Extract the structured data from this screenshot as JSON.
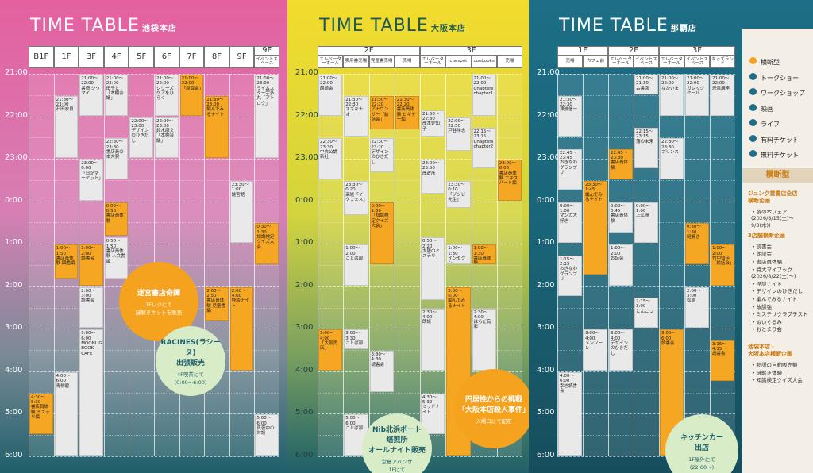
{
  "panels": [
    {
      "title": "TIME TABLE",
      "store": "池袋本店",
      "times": [
        "21:00",
        "22:00",
        "23:00",
        "0:00",
        "1:00",
        "2:00",
        "3:00",
        "4:00",
        "5:00",
        "6:00"
      ],
      "floors": [
        {
          "label": "B1F",
          "columns": [
            {
              "events": [
                {
                  "time": "4:30～5:30",
                  "label": "書店員体験 ミステリ編",
                  "color": "#f5a623"
                }
              ]
            }
          ]
        },
        {
          "label": "1F",
          "columns": [
            {
              "events": [
                {
                  "time": "21:30～23:00",
                  "label": "石田衣良",
                  "color": "#e9e9e9"
                },
                {
                  "time": "1:00～1:50",
                  "label": "書店員体験 図鑑編",
                  "color": "#f5a623"
                },
                {
                  "time": "4:00～6:00",
                  "label": "青柳碧",
                  "color": "#e9e9e9"
                }
              ]
            }
          ]
        },
        {
          "label": "3F",
          "columns": [
            {
              "events": [
                {
                  "time": "21:00～22:00",
                  "label": "書斎 シワマイ",
                  "color": "#e9e9e9"
                },
                {
                  "time": "23:00～0:00",
                  "label": "「日記マーケット」",
                  "color": "#e9e9e9"
                },
                {
                  "time": "1:00～2:00",
                  "label": "読書会",
                  "color": "#f5a623"
                },
                {
                  "time": "2:00～3:00",
                  "label": "読書会",
                  "color": "#e9e9e9"
                },
                {
                  "time": "3:00～6:00",
                  "label": "MOONLIGHT BOOK CAFE",
                  "color": "#e9e9e9"
                }
              ]
            }
          ]
        },
        {
          "label": "4F",
          "columns": [
            {
              "events": [
                {
                  "time": "21:00～22:00",
                  "label": "田子と「本棚会議」",
                  "color": "#e9e9e9"
                },
                {
                  "time": "22:30～23:30",
                  "label": "書店員の本大賞",
                  "color": "#e9e9e9"
                },
                {
                  "time": "0:00～0:50",
                  "label": "書店員体験",
                  "color": "#f5a623"
                },
                {
                  "time": "0:50～1:50",
                  "label": "書店員体験 人文書編",
                  "color": "#e9e9e9"
                }
              ]
            }
          ]
        },
        {
          "label": "5F",
          "columns": [
            {
              "events": [
                {
                  "time": "22:00～23:00",
                  "label": "デザインのひきだし",
                  "color": "#e9e9e9"
                }
              ]
            }
          ]
        },
        {
          "label": "6F",
          "columns": [
            {
              "events": [
                {
                  "time": "21:00～22:00",
                  "label": "シリーズケアをひらく",
                  "color": "#e9e9e9"
                },
                {
                  "time": "22:00～23:00",
                  "label": "鈴木康文「本棚会議」",
                  "color": "#e9e9e9"
                }
              ]
            }
          ]
        },
        {
          "label": "7F",
          "columns": [
            {
              "events": [
                {
                  "time": "21:00～22:00",
                  "label": "「原頁会」",
                  "color": "#f5a623"
                }
              ]
            }
          ]
        },
        {
          "label": "8F",
          "columns": [
            {
              "events": [
                {
                  "time": "21:30～23:00",
                  "label": "編んでみるナイト",
                  "color": "#f5a623"
                },
                {
                  "time": "2:00～2:50",
                  "label": "書店員体験 児童書編",
                  "color": "#f5a623"
                }
              ]
            }
          ]
        },
        {
          "label": "9F",
          "columns": [
            {
              "events": [
                {
                  "time": "23:30～1:00",
                  "label": "謎宮館",
                  "color": "#e9e9e9"
                },
                {
                  "time": "2:00～4:00",
                  "label": "怪談ナイト",
                  "color": "#f5a623"
                }
              ]
            }
          ]
        },
        {
          "label": "9F",
          "columns": [
            {
              "name": "イベントスペース",
              "events": [
                {
                  "time": "21:00～23:00",
                  "label": "ライムスター宇多丸「アトロク」",
                  "color": "#e9e9e9"
                },
                {
                  "time": "0:30～1:30",
                  "label": "知識検定クイズ大会",
                  "color": "#f5a623"
                },
                {
                  "time": "5:00～6:00",
                  "label": "真夜中の対談",
                  "color": "#e9e9e9"
                }
              ]
            }
          ]
        }
      ],
      "annotations": [
        {
          "title": "迷宮書店奇譚",
          "text": "1Fレジにて\n謎解きキットを販売",
          "color": "#f5a21e"
        },
        {
          "title": "RACINES(ラシーヌ)\n出張販売",
          "text": "4F喫茶にて\n(0:00～6:00)",
          "color": "#d9ecc8"
        }
      ]
    },
    {
      "title": "TIME TABLE",
      "store": "大阪本店",
      "times": [
        "21:00",
        "22:00",
        "23:00",
        "0:00",
        "1:00",
        "2:00",
        "3:00",
        "4:00",
        "5:00",
        "6:00"
      ],
      "floors": [
        {
          "label": "2F",
          "columns": [
            {
              "name": "エレベーターホール",
              "events": [
                {
                  "time": "21:00～22:00",
                  "label": "朗読会",
                  "color": "#e9e9e9"
                },
                {
                  "time": "22:30～23:30",
                  "label": "中央公論新社",
                  "color": "#e9e9e9"
                },
                {
                  "time": "3:00～4:00",
                  "label": "「大阪売店」",
                  "color": "#f5a623"
                }
              ]
            },
            {
              "name": "実用書売場",
              "events": [
                {
                  "time": "21:30～22:30",
                  "label": "スズキナオ",
                  "color": "#e9e9e9"
                },
                {
                  "time": "23:30～0:20",
                  "label": "高坂「イケフェス」",
                  "color": "#e9e9e9"
                },
                {
                  "time": "1:00～2:00",
                  "label": "ことば部",
                  "color": "#e9e9e9"
                },
                {
                  "time": "3:00～3:30",
                  "label": "ことば部",
                  "color": "#e9e9e9"
                },
                {
                  "time": "5:00～6:00",
                  "label": "ことば部",
                  "color": "#e9e9e9"
                }
              ]
            },
            {
              "name": "児童書売場",
              "events": [
                {
                  "time": "21:30～22:20",
                  "label": "アナウンサー「絵話会」",
                  "color": "#f5a623"
                },
                {
                  "time": "22:30～23:20",
                  "label": "デザインのひきだし",
                  "color": "#e9e9e9"
                },
                {
                  "time": "0:00～1:30",
                  "label": "「知識検定クイズ大会」",
                  "color": "#f5a623"
                },
                {
                  "time": "3:30～4:30",
                  "label": "読書会",
                  "color": "#e9e9e9"
                }
              ]
            },
            {
              "name": "売場",
              "events": [
                {
                  "time": "21:30～22:20",
                  "label": "書店員体験 ビギナー編",
                  "color": "#f5a623"
                }
              ]
            }
          ]
        },
        {
          "label": "3F",
          "columns": [
            {
              "name": "エレベーターホール",
              "events": [
                {
                  "time": "21:50～22:30",
                  "label": "岸本佐知子",
                  "color": "#e9e9e9"
                },
                {
                  "time": "23:00～23:50",
                  "label": "岸政彦",
                  "color": "#e9e9e9"
                },
                {
                  "time": "0:50～2:20",
                  "label": "大阪のミステリ",
                  "color": "#e9e9e9"
                },
                {
                  "time": "2:30～4:00",
                  "label": "朗読",
                  "color": "#e9e9e9"
                },
                {
                  "time": "4:30～5:30",
                  "label": "ミッドナイト",
                  "color": "#e9e9e9"
                }
              ]
            },
            {
              "name": "cuespot",
              "events": [
                {
                  "time": "22:00～22:50",
                  "label": "戸谷洋志",
                  "color": "#e9e9e9"
                },
                {
                  "time": "23:30～0:10",
                  "label": "「ゾンビ先生」",
                  "color": "#e9e9e9"
                },
                {
                  "time": "1:00～1:30",
                  "label": "インセクシ",
                  "color": "#e9e9e9"
                },
                {
                  "time": "2:00～6:00",
                  "label": "編んでみるナイト",
                  "color": "#f5a623"
                }
              ]
            },
            {
              "name": "cuebooks",
              "events": [
                {
                  "time": "21:00～22:00",
                  "label": "Chapters chapter1",
                  "color": "#e9e9e9"
                },
                {
                  "time": "22:15～23:15",
                  "label": "Chapters chapter2",
                  "color": "#e9e9e9"
                },
                {
                  "time": "1:00～1:30",
                  "label": "書店員体験",
                  "color": "#f5a623"
                },
                {
                  "time": "2:30～4:00",
                  "label": "はらだ有彩",
                  "color": "#e9e9e9"
                }
              ]
            },
            {
              "name": "売場",
              "events": [
                {
                  "time": "23:00～0:00",
                  "label": "書店員体験 エキスパート編",
                  "color": "#f5a623"
                }
              ]
            }
          ]
        }
      ],
      "annotations": [
        {
          "title": "円居挽からの挑戦\n「大阪本店殺人事件」",
          "text": "入場口にて配布",
          "color": "#f5a21e"
        },
        {
          "title": "Nib北浜ポート\n焙煎所\nオールナイト販売",
          "text": "堂島アバンザ\n1Fにて",
          "color": "#d9ecc8"
        }
      ]
    },
    {
      "title": "TIME TABLE",
      "store": "那覇店",
      "times": [
        "21:00",
        "22:00",
        "23:00",
        "0:00",
        "1:00",
        "2:00",
        "3:00",
        "4:00",
        "5:00",
        "6:00"
      ],
      "floors": [
        {
          "label": "1F",
          "columns": [
            {
              "name": "売場",
              "events": [
                {
                  "time": "21:30～22:30",
                  "label": "津波信一",
                  "color": "#e9e9e9"
                },
                {
                  "time": "22:45～23:45",
                  "label": "おきなわグランプリ",
                  "color": "#e9e9e9"
                },
                {
                  "time": "0:00～1:00",
                  "label": "マンガ大好き",
                  "color": "#e9e9e9"
                },
                {
                  "time": "1:15～2:15",
                  "label": "おきなわグランプリ",
                  "color": "#e9e9e9"
                },
                {
                  "time": "4:00～6:00",
                  "label": "幸き読書会",
                  "color": "#e9e9e9"
                }
              ]
            },
            {
              "name": "カフェ前",
              "events": [
                {
                  "time": "23:30～1:45",
                  "label": "編んでみるナイト",
                  "color": "#f5a623"
                },
                {
                  "time": "3:00～4:00",
                  "label": "メンソーレ",
                  "color": "#e9e9e9"
                }
              ]
            }
          ]
        },
        {
          "label": "2F",
          "columns": [
            {
              "name": "エレベーターホール",
              "events": [
                {
                  "time": "22:45～23:30",
                  "label": "書店員体験",
                  "color": "#f5a623"
                },
                {
                  "time": "0:00～0:45",
                  "label": "書店員体験",
                  "color": "#e9e9e9"
                },
                {
                  "time": "1:00～2:00",
                  "label": "お話会",
                  "color": "#e9e9e9"
                },
                {
                  "time": "3:00～4:00",
                  "label": "デザインのひきだし",
                  "color": "#e9e9e9"
                }
              ]
            },
            {
              "name": "イベントスペース",
              "events": [
                {
                  "time": "21:00～21:30",
                  "label": "古書店",
                  "color": "#e9e9e9"
                },
                {
                  "time": "22:15～23:15",
                  "label": "藩の未来",
                  "color": "#e9e9e9"
                },
                {
                  "time": "0:00～1:00",
                  "label": "上江洲",
                  "color": "#e9e9e9"
                },
                {
                  "time": "2:15～3:00",
                  "label": "とんこつ",
                  "color": "#e9e9e9"
                }
              ]
            }
          ]
        },
        {
          "label": "3F",
          "columns": [
            {
              "name": "エレベーターホール",
              "events": [
                {
                  "time": "21:00～22:00",
                  "label": "なかいま",
                  "color": "#e9e9e9"
                },
                {
                  "time": "22:30～23:30",
                  "label": "プリンス",
                  "color": "#e9e9e9"
                },
                {
                  "time": "3:00～6:00",
                  "label": "読書会",
                  "color": "#f5a623"
                }
              ]
            },
            {
              "name": "イベントスペース",
              "events": [
                {
                  "time": "21:00～22:00",
                  "label": "ガレッジセール",
                  "color": "#e9e9e9"
                },
                {
                  "time": "0:30～1:30",
                  "label": "謎解き",
                  "color": "#f5a623"
                },
                {
                  "time": "2:00～3:00",
                  "label": "松原",
                  "color": "#e9e9e9"
                }
              ]
            },
            {
              "name": "キッズランド",
              "events": [
                {
                  "time": "21:00～22:00",
                  "label": "恐竜講座",
                  "color": "#e9e9e9"
                },
                {
                  "time": "1:00～2:00",
                  "label": "竹中知佳「絵話会」",
                  "color": "#f5a623"
                },
                {
                  "time": "3:15～4:15",
                  "label": "読書会",
                  "color": "#f5a623"
                }
              ]
            }
          ]
        }
      ],
      "annotations": [
        {
          "title": "キッチンカー\n出店",
          "text": "1F屋外にて\n(22:00～)",
          "color": "#d9ecc8"
        }
      ]
    }
  ],
  "legend": [
    "横断型",
    "トークショー",
    "ワークショップ",
    "映画",
    "ライブ",
    "有料チケット",
    "無料チケット"
  ],
  "cross": {
    "title": "横断型",
    "groups": [
      {
        "title": "ジュンク堂書店全店\n横断企画",
        "items": [
          "・夜の本フェア\n(2026/8/15(土)～9/3(木))"
        ]
      },
      {
        "title": "3店舗横断企画",
        "items": [
          "・読書会",
          "・朗読会",
          "・書店員体験",
          "・特大マイブック\n(2026/8/22(土)～)",
          "・怪談ナイト",
          "・デザインのひきだし",
          "・編んでみるナイト",
          "・故課強",
          "・ミステリクラブテスト",
          "・ぬいぐるみ",
          "・おとまり会"
        ]
      },
      {
        "title": "池袋本店・\n大阪本店横断企画",
        "items": [
          "・物語の自動販売機",
          "・謎解き体験",
          "・知識検定クイズ大会"
        ]
      }
    ]
  }
}
